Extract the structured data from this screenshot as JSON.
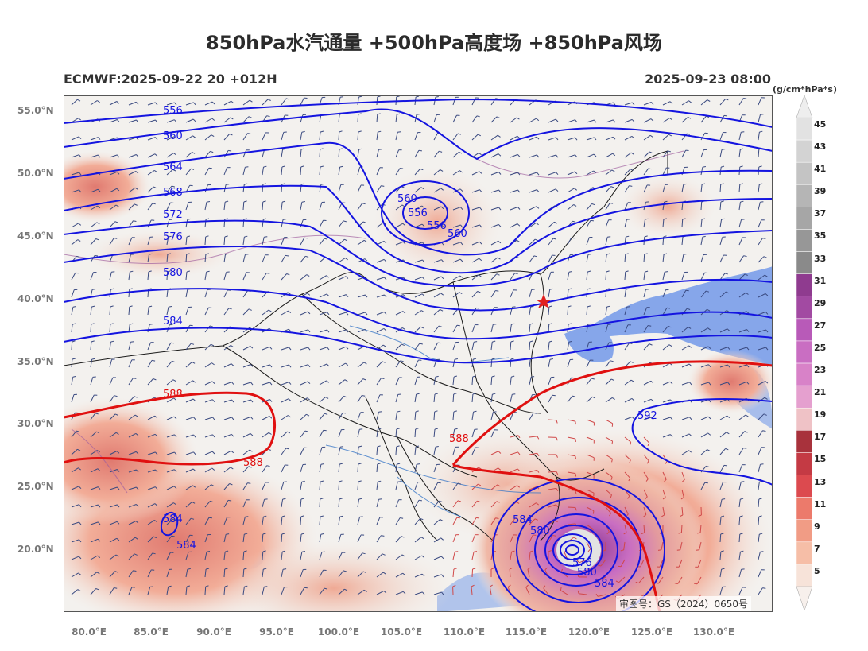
{
  "header": {
    "title": "850hPa水汽通量 +500hPa高度场 +850hPa风场",
    "model_init": "ECMWF:2025-09-22 20 +012H",
    "valid_time": "2025-09-23 08:00"
  },
  "colorbar": {
    "units": "(g/cm*hPa*s)",
    "labels": [
      "45",
      "43",
      "41",
      "39",
      "37",
      "35",
      "33",
      "31",
      "29",
      "27",
      "25",
      "23",
      "21",
      "19",
      "17",
      "15",
      "13",
      "11",
      "9",
      "7",
      "5"
    ],
    "colors": [
      "#e2e2e2",
      "#d3d3d3",
      "#c4c4c4",
      "#b5b5b5",
      "#a6a6a6",
      "#979797",
      "#8a8a8a",
      "#8f3b8f",
      "#a24aa2",
      "#b85ab8",
      "#c96ec2",
      "#d882c8",
      "#e5a0cf",
      "#efc2c6",
      "#a8323c",
      "#c43a44",
      "#dc4a4f",
      "#ec7a6b",
      "#f19c85",
      "#f6bea7",
      "#f7e3d9"
    ]
  },
  "axes": {
    "lat_labels": [
      "55.0°N",
      "50.0°N",
      "45.0°N",
      "40.0°N",
      "35.0°N",
      "30.0°N",
      "25.0°N",
      "20.0°N"
    ],
    "lon_labels": [
      "80.0°E",
      "85.0°E",
      "90.0°E",
      "95.0°E",
      "100.0°E",
      "105.0°E",
      "110.0°E",
      "115.0°E",
      "120.0°E",
      "125.0°E",
      "130.0°E"
    ]
  },
  "contour_labels": {
    "blue_west": [
      "556",
      "560",
      "564",
      "568",
      "572",
      "576",
      "580",
      "584"
    ],
    "low_center": [
      "560",
      "556",
      "556",
      "560"
    ],
    "southwest": [
      "584",
      "584"
    ],
    "typhoon": [
      "584",
      "580",
      "576",
      "580",
      "584"
    ],
    "east": "592",
    "red_588": [
      "588",
      "588",
      "588"
    ]
  },
  "colors": {
    "height_contour": "#1010d8",
    "ridge_588": "#e01010",
    "wind_barb": "#3a4a80",
    "land": "#f3f1ee",
    "ocean": "#7fa2e8",
    "marker_star": "#e02020"
  },
  "approval_number": "审图号：GS（2024）0650号"
}
